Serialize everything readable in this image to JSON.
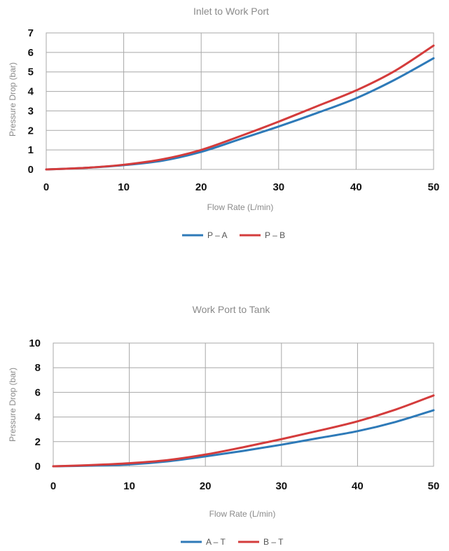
{
  "chart_data": [
    {
      "type": "line",
      "title": "Inlet to Work Port",
      "xlabel": "Flow Rate (L/min)",
      "ylabel": "Pressure Drop (bar)",
      "xlim": [
        0,
        50
      ],
      "ylim": [
        0,
        7
      ],
      "xticks": [
        "0",
        "10",
        "20",
        "30",
        "40",
        "50"
      ],
      "yticks": [
        "0",
        "1",
        "2",
        "3",
        "4",
        "5",
        "6",
        "7"
      ],
      "grid": true,
      "legend": "bottom",
      "series": [
        {
          "name": "P – A",
          "color": "#2e7ab8",
          "x": [
            0,
            5,
            10,
            15,
            20,
            25,
            30,
            35,
            40,
            45,
            50
          ],
          "y": [
            0,
            0.08,
            0.22,
            0.45,
            0.9,
            1.55,
            2.2,
            2.9,
            3.65,
            4.6,
            5.7
          ]
        },
        {
          "name": "P – B",
          "color": "#d43c3c",
          "x": [
            0,
            5,
            10,
            15,
            20,
            25,
            30,
            35,
            40,
            45,
            50
          ],
          "y": [
            0,
            0.08,
            0.24,
            0.52,
            1.0,
            1.7,
            2.45,
            3.25,
            4.05,
            5.05,
            6.35
          ]
        }
      ]
    },
    {
      "type": "line",
      "title": "Work Port to Tank",
      "xlabel": "Flow Rate (L/min)",
      "ylabel": "Pressure Drop (bar)",
      "xlim": [
        0,
        50
      ],
      "ylim": [
        0,
        10
      ],
      "xticks": [
        "0",
        "10",
        "20",
        "30",
        "40",
        "50"
      ],
      "yticks": [
        "0",
        "2",
        "4",
        "6",
        "8",
        "10"
      ],
      "grid": true,
      "legend": "bottom",
      "series": [
        {
          "name": "A – T",
          "color": "#2e7ab8",
          "x": [
            0,
            5,
            10,
            15,
            20,
            25,
            30,
            35,
            40,
            45,
            50
          ],
          "y": [
            0,
            0.05,
            0.15,
            0.4,
            0.8,
            1.25,
            1.75,
            2.3,
            2.85,
            3.6,
            4.55
          ]
        },
        {
          "name": "B – T",
          "color": "#d43c3c",
          "x": [
            0,
            5,
            10,
            15,
            20,
            25,
            30,
            35,
            40,
            45,
            50
          ],
          "y": [
            0,
            0.1,
            0.25,
            0.5,
            0.95,
            1.55,
            2.2,
            2.9,
            3.65,
            4.6,
            5.75
          ]
        }
      ]
    }
  ]
}
